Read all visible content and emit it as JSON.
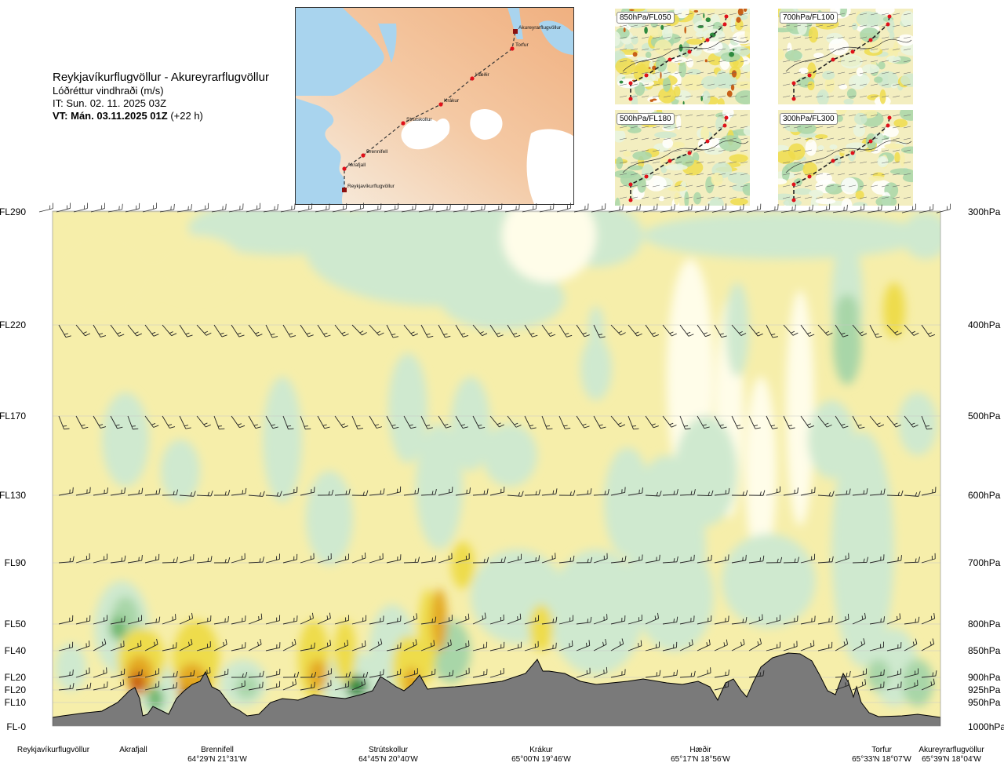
{
  "header": {
    "route": "Reykjavíkurflugvöllur - Akureyrarflugvöllur",
    "parameter": "Lóðréttur vindhraði (m/s)",
    "issue_time": "IT: Sun. 02. 11. 2025 03Z",
    "valid_time": "VT: Mán. 03.11.2025 01Z",
    "lead_time": "(+22 h)"
  },
  "route_map": {
    "waypoints": [
      {
        "name": "Reykjavíkurflugvöllur",
        "kind": "airport"
      },
      {
        "name": "Akrafjall",
        "kind": "point"
      },
      {
        "name": "Brennifell",
        "kind": "point"
      },
      {
        "name": "Strútskollur",
        "kind": "point"
      },
      {
        "name": "Krákur",
        "kind": "point"
      },
      {
        "name": "Hæðir",
        "kind": "point"
      },
      {
        "name": "Torfur",
        "kind": "point"
      },
      {
        "name": "Akureyrarflugvöllur",
        "kind": "airport"
      }
    ]
  },
  "minimaps": [
    {
      "label": "850hPa/FL050"
    },
    {
      "label": "700hPa/FL100"
    },
    {
      "label": "500hPa/FL180"
    },
    {
      "label": "300hPa/FL300"
    }
  ],
  "levels": [
    {
      "fl": "FL290",
      "hpa": "300hPa"
    },
    {
      "fl": "FL220",
      "hpa": "400hPa"
    },
    {
      "fl": "FL170",
      "hpa": "500hPa"
    },
    {
      "fl": "FL130",
      "hpa": "600hPa"
    },
    {
      "fl": "FL90",
      "hpa": "700hPa"
    },
    {
      "fl": "FL50",
      "hpa": "800hPa"
    },
    {
      "fl": "FL40",
      "hpa": "850hPa"
    },
    {
      "fl": "FL20",
      "hpa": "900hPa"
    },
    {
      "fl": "FL20",
      "hpa": "925hPa"
    },
    {
      "fl": "FL10",
      "hpa": "950hPa"
    },
    {
      "fl": "FL-0",
      "hpa": "1000hPa"
    }
  ],
  "locations": [
    {
      "name": "Reykjavíkurflugvöllur",
      "coord": ""
    },
    {
      "name": "Akrafjall",
      "coord": ""
    },
    {
      "name": "Brennifell",
      "coord": "64°29'N 21°31'W"
    },
    {
      "name": "Strútskollur",
      "coord": "64°45'N 20°40'W"
    },
    {
      "name": "Krákur",
      "coord": "65°00'N 19°46'W"
    },
    {
      "name": "Hæðir",
      "coord": "65°17'N 18°56'W"
    },
    {
      "name": "Torfur",
      "coord": "65°33'N 18°07'W"
    },
    {
      "name": "Akureyrarflugvöllur",
      "coord": "65°39'N 18°04'W"
    }
  ],
  "colors": {
    "sea": "#a9d4ee",
    "land_low": "#f6efe3",
    "land_high": "#f2b98d",
    "glacier": "#ffffff",
    "terrain": "#7a7a7a",
    "route": "#333333",
    "waypoint": "#e0101a",
    "airport": "#8b1010",
    "up_weak": "#f6eeaa",
    "up_mod": "#eedc4c",
    "up_strong": "#e3a820",
    "up_vstrong": "#c86018",
    "up_extreme": "#8a3a10",
    "down_weak": "#cfe9cf",
    "down_mod": "#a8d6a8",
    "down_strong": "#6cb66c",
    "down_vstrong": "#2e8a3e",
    "neutral": "#fffde9"
  }
}
